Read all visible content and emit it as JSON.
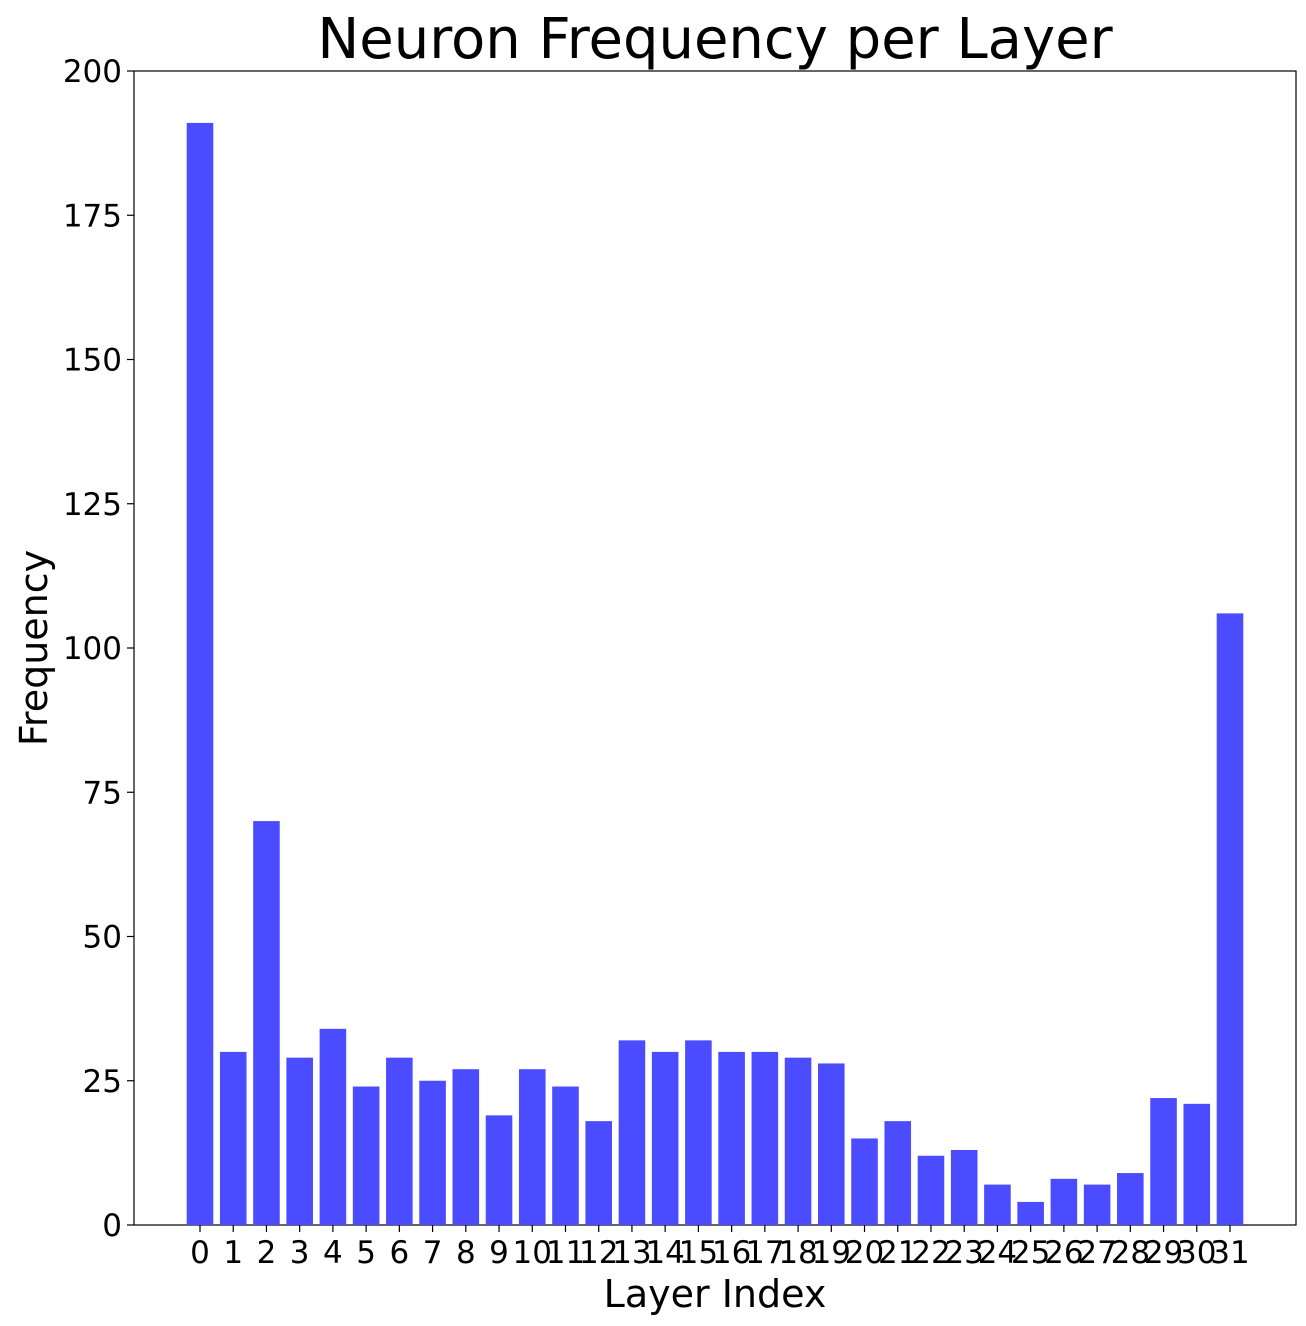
{
  "chart_data": {
    "type": "bar",
    "title": "Neuron Frequency per Layer",
    "xlabel": "Layer Index",
    "ylabel": "Frequency",
    "categories": [
      "0",
      "1",
      "2",
      "3",
      "4",
      "5",
      "6",
      "7",
      "8",
      "9",
      "10",
      "11",
      "12",
      "13",
      "14",
      "15",
      "16",
      "17",
      "18",
      "19",
      "20",
      "21",
      "22",
      "23",
      "24",
      "25",
      "26",
      "27",
      "28",
      "29",
      "30",
      "31"
    ],
    "values": [
      191,
      30,
      70,
      29,
      34,
      24,
      29,
      25,
      27,
      19,
      27,
      24,
      18,
      32,
      30,
      32,
      30,
      30,
      29,
      28,
      15,
      18,
      12,
      13,
      7,
      4,
      8,
      7,
      9,
      22,
      21,
      106
    ],
    "ylim": [
      0,
      200
    ],
    "yticks": [
      0,
      25,
      50,
      75,
      100,
      125,
      150,
      175,
      200
    ],
    "grid": false,
    "legend": "none",
    "bar_color": "#4b4bff"
  }
}
